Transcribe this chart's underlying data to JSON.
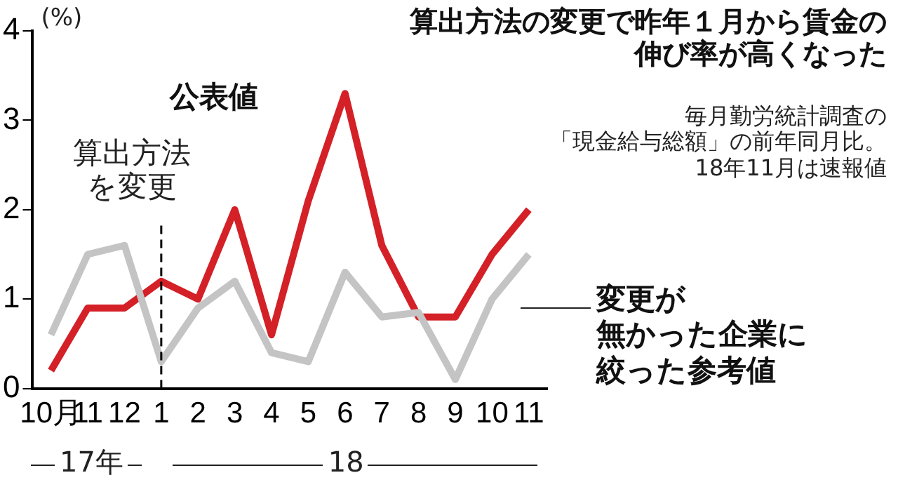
{
  "chart_data": {
    "type": "line",
    "title": "算出方法の変更で昨年１月から賃金の伸び率が高くなった",
    "subtitle": "毎月勤労統計調査の「現金給与総額」の前年同月比。18年11月は速報値",
    "ylabel": "(%)",
    "categories": [
      "10月",
      "11",
      "12",
      "1",
      "2",
      "3",
      "4",
      "5",
      "6",
      "7",
      "8",
      "9",
      "10",
      "11"
    ],
    "series": [
      {
        "name": "変更が無かった企業に絞った参考値",
        "color": "#c4c4c4",
        "values": [
          0.6,
          1.5,
          1.6,
          0.3,
          0.9,
          1.2,
          0.4,
          0.3,
          1.3,
          0.8,
          0.85,
          0.1,
          1.0,
          1.5
        ]
      },
      {
        "name": "公表値",
        "color": "#d42027",
        "values": [
          0.2,
          0.9,
          0.9,
          1.2,
          1.0,
          2.0,
          0.6,
          2.1,
          3.3,
          1.6,
          0.8,
          0.8,
          1.5,
          2.0
        ]
      }
    ],
    "ylim": [
      0,
      4
    ],
    "yticks": [
      0,
      1,
      2,
      3,
      4
    ],
    "grid": false,
    "legend": false,
    "marker": "none",
    "line_style": "solid",
    "ref_lines": [
      {
        "axis": "x",
        "value": "1",
        "label": "算出方法を変更",
        "line_style": "dashed",
        "color": "#000000"
      }
    ],
    "annotations": [
      "17年",
      "18"
    ]
  }
}
